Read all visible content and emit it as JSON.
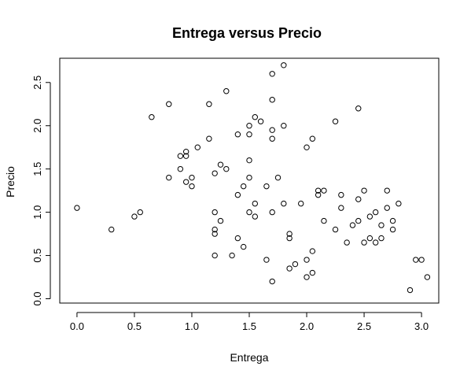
{
  "chart_data": {
    "type": "scatter",
    "title": "Entrega versus Precio",
    "xlabel": "Entrega",
    "ylabel": "Precio",
    "xlim": [
      -0.15,
      3.15
    ],
    "ylim": [
      -0.05,
      2.78
    ],
    "xticks": [
      0.0,
      0.5,
      1.0,
      1.5,
      2.0,
      2.5,
      3.0
    ],
    "xtick_labels": [
      "0.0",
      "0.5",
      "1.0",
      "1.5",
      "2.0",
      "2.5",
      "3.0"
    ],
    "yticks": [
      0.0,
      0.5,
      1.0,
      1.5,
      2.0,
      2.5
    ],
    "ytick_labels": [
      "0.0",
      "0.5",
      "1.0",
      "1.5",
      "2.0",
      "2.5"
    ],
    "grid": false,
    "legend": "none",
    "marker": "open-circle",
    "points": [
      [
        0.0,
        1.05
      ],
      [
        0.3,
        0.8
      ],
      [
        0.5,
        0.95
      ],
      [
        0.55,
        1.0
      ],
      [
        0.65,
        2.1
      ],
      [
        0.8,
        2.25
      ],
      [
        0.8,
        1.4
      ],
      [
        0.9,
        1.5
      ],
      [
        0.9,
        1.65
      ],
      [
        0.95,
        1.7
      ],
      [
        0.95,
        1.65
      ],
      [
        0.95,
        1.35
      ],
      [
        1.0,
        1.4
      ],
      [
        1.0,
        1.3
      ],
      [
        1.05,
        1.75
      ],
      [
        1.15,
        2.25
      ],
      [
        1.15,
        1.85
      ],
      [
        1.2,
        1.45
      ],
      [
        1.2,
        1.0
      ],
      [
        1.2,
        0.8
      ],
      [
        1.2,
        0.75
      ],
      [
        1.2,
        0.5
      ],
      [
        1.25,
        1.55
      ],
      [
        1.25,
        0.9
      ],
      [
        1.3,
        2.4
      ],
      [
        1.3,
        1.5
      ],
      [
        1.35,
        0.5
      ],
      [
        1.4,
        1.9
      ],
      [
        1.4,
        1.2
      ],
      [
        1.4,
        0.7
      ],
      [
        1.45,
        1.3
      ],
      [
        1.45,
        0.6
      ],
      [
        1.5,
        2.0
      ],
      [
        1.5,
        1.9
      ],
      [
        1.5,
        1.6
      ],
      [
        1.5,
        1.4
      ],
      [
        1.5,
        1.0
      ],
      [
        1.55,
        2.1
      ],
      [
        1.55,
        1.1
      ],
      [
        1.55,
        0.95
      ],
      [
        1.6,
        2.05
      ],
      [
        1.65,
        1.3
      ],
      [
        1.65,
        0.45
      ],
      [
        1.7,
        2.6
      ],
      [
        1.7,
        2.3
      ],
      [
        1.7,
        1.95
      ],
      [
        1.7,
        1.85
      ],
      [
        1.7,
        1.0
      ],
      [
        1.7,
        0.2
      ],
      [
        1.75,
        1.4
      ],
      [
        1.8,
        2.7
      ],
      [
        1.8,
        2.0
      ],
      [
        1.8,
        1.1
      ],
      [
        1.85,
        0.75
      ],
      [
        1.85,
        0.7
      ],
      [
        1.85,
        0.35
      ],
      [
        1.9,
        0.4
      ],
      [
        1.95,
        1.1
      ],
      [
        2.0,
        1.75
      ],
      [
        2.0,
        0.45
      ],
      [
        2.0,
        0.25
      ],
      [
        2.05,
        1.85
      ],
      [
        2.05,
        0.55
      ],
      [
        2.05,
        0.3
      ],
      [
        2.1,
        1.25
      ],
      [
        2.1,
        1.2
      ],
      [
        2.15,
        1.25
      ],
      [
        2.15,
        0.9
      ],
      [
        2.25,
        2.05
      ],
      [
        2.25,
        0.8
      ],
      [
        2.3,
        1.2
      ],
      [
        2.3,
        1.05
      ],
      [
        2.35,
        0.65
      ],
      [
        2.4,
        0.85
      ],
      [
        2.45,
        2.2
      ],
      [
        2.45,
        1.15
      ],
      [
        2.45,
        0.9
      ],
      [
        2.5,
        1.25
      ],
      [
        2.5,
        0.65
      ],
      [
        2.55,
        0.95
      ],
      [
        2.55,
        0.7
      ],
      [
        2.6,
        1.0
      ],
      [
        2.6,
        0.65
      ],
      [
        2.65,
        0.85
      ],
      [
        2.65,
        0.7
      ],
      [
        2.7,
        1.25
      ],
      [
        2.7,
        1.05
      ],
      [
        2.75,
        0.9
      ],
      [
        2.75,
        0.8
      ],
      [
        2.8,
        1.1
      ],
      [
        2.9,
        0.1
      ],
      [
        2.95,
        0.45
      ],
      [
        3.0,
        0.45
      ],
      [
        3.05,
        0.25
      ]
    ]
  }
}
